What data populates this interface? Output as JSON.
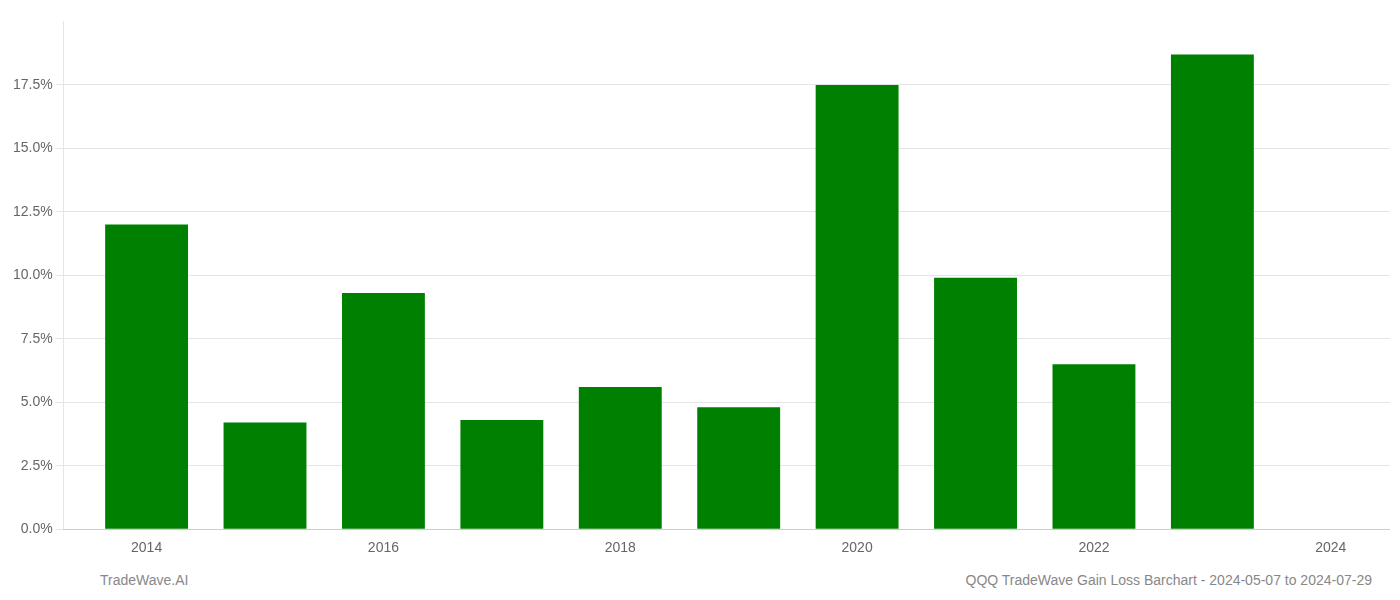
{
  "chart_data": {
    "type": "bar",
    "x": [
      2014,
      2015,
      2016,
      2017,
      2018,
      2019,
      2020,
      2021,
      2022,
      2023
    ],
    "values": [
      0.12,
      0.042,
      0.093,
      0.043,
      0.056,
      0.048,
      0.175,
      0.099,
      0.065,
      0.187
    ],
    "color": "#008000",
    "xlim": [
      2013.3,
      2024.5
    ],
    "xticks": [
      2014,
      2016,
      2018,
      2020,
      2022,
      2024
    ],
    "ylim": [
      0,
      0.2
    ],
    "yticks": [
      {
        "value": 0.0,
        "label": "0.0%"
      },
      {
        "value": 0.025,
        "label": "2.5%"
      },
      {
        "value": 0.05,
        "label": "5.0%"
      },
      {
        "value": 0.075,
        "label": "7.5%"
      },
      {
        "value": 0.1,
        "label": "10.0%"
      },
      {
        "value": 0.125,
        "label": "12.5%"
      },
      {
        "value": 0.15,
        "label": "15.0%"
      },
      {
        "value": 0.175,
        "label": "17.5%"
      }
    ],
    "grid": true,
    "annotations": [
      "TradeWave.AI",
      "QQQ TradeWave Gain Loss Barchart - 2024-05-07 to 2024-07-29"
    ]
  }
}
